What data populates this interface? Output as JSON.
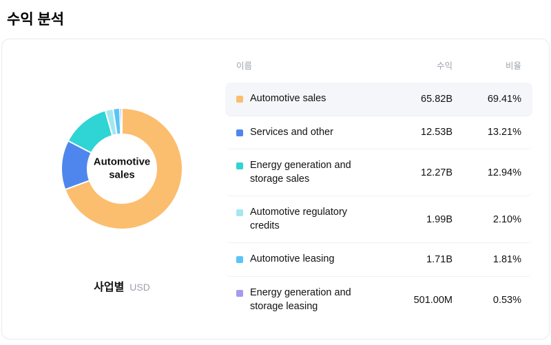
{
  "page_title": "수익 분석",
  "table": {
    "headers": {
      "name": "이름",
      "revenue": "수익",
      "ratio": "비율"
    },
    "rows": [
      {
        "name": "Automotive sales",
        "revenue": "65.82B",
        "ratio": "69.41%",
        "color": "#FBBE6E",
        "highlighted": true
      },
      {
        "name": "Services and other",
        "revenue": "12.53B",
        "ratio": "13.21%",
        "color": "#4F86EE",
        "highlighted": false
      },
      {
        "name": "Energy generation and storage sales",
        "revenue": "12.27B",
        "ratio": "12.94%",
        "color": "#2FD4D4",
        "highlighted": false
      },
      {
        "name": "Automotive regulatory credits",
        "revenue": "1.99B",
        "ratio": "2.10%",
        "color": "#A5E7F0",
        "highlighted": false
      },
      {
        "name": "Automotive leasing",
        "revenue": "1.71B",
        "ratio": "1.81%",
        "color": "#58C5F6",
        "highlighted": false
      },
      {
        "name": "Energy generation and storage leasing",
        "revenue": "501.00M",
        "ratio": "0.53%",
        "color": "#A39BEF",
        "highlighted": false
      }
    ]
  },
  "chart_data": {
    "type": "pie",
    "subtype": "donut",
    "title": "사업별",
    "unit": "USD",
    "center_label": "Automotive sales",
    "legend_position": "right-table",
    "categories": [
      "Automotive sales",
      "Services and other",
      "Energy generation and storage sales",
      "Automotive regulatory credits",
      "Automotive leasing",
      "Energy generation and storage leasing"
    ],
    "values_percent": [
      69.41,
      13.21,
      12.94,
      2.1,
      1.81,
      0.53
    ],
    "values_revenue": [
      "65.82B",
      "12.53B",
      "12.27B",
      "1.99B",
      "1.71B",
      "501.00M"
    ],
    "colors": [
      "#FBBE6E",
      "#4F86EE",
      "#2FD4D4",
      "#A5E7F0",
      "#58C5F6",
      "#A39BEF"
    ],
    "start_angle_deg": 0,
    "direction": "clockwise"
  },
  "caption": {
    "category_label": "사업별",
    "currency": "USD"
  }
}
